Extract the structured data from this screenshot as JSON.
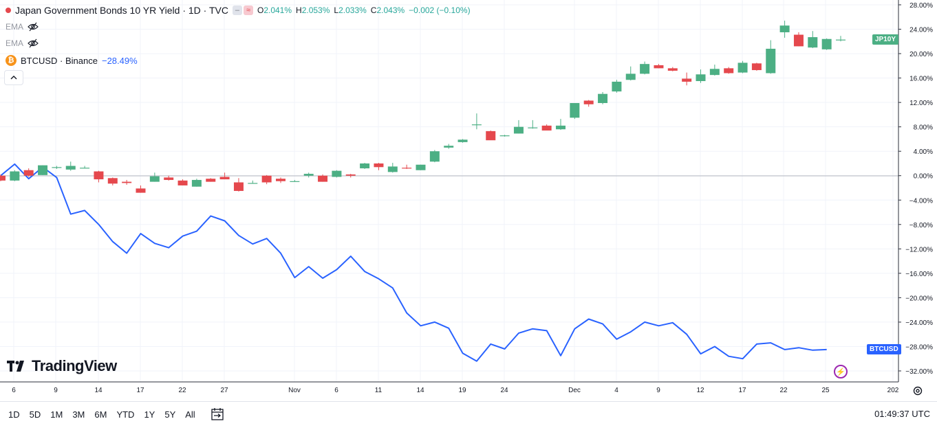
{
  "legend": {
    "symbol_title": "Japan Government Bonds 10 YR Yield · 1D · TVC",
    "o_label": "O",
    "o": "2.041%",
    "h_label": "H",
    "h": "2.053%",
    "l_label": "L",
    "l": "2.033%",
    "c_label": "C",
    "c": "2.043%",
    "change": "−0.002 (−0.10%)",
    "ema1": "EMA",
    "ema2": "EMA",
    "compare_symbol": "BTCUSD · Binance",
    "compare_change": "−28.49%"
  },
  "logo_text": "TradingView",
  "timeframes": [
    "1D",
    "5D",
    "1M",
    "3M",
    "6M",
    "YTD",
    "1Y",
    "5Y",
    "All"
  ],
  "clock": "01:49:37 UTC",
  "colors": {
    "up": "#4caf84",
    "down": "#e5484d",
    "btc": "#2962ff",
    "axis_text": "#131722",
    "jp_tag": "#4caf84",
    "btc_tag": "#2962ff"
  },
  "chart_data": {
    "type": "candlestick+line",
    "y_axis": {
      "unit": "%",
      "range": [
        -32,
        28
      ],
      "ticks": [
        "28.00%",
        "24.00%",
        "20.00%",
        "16.00%",
        "12.00%",
        "8.00%",
        "4.00%",
        "0.00%",
        "−4.00%",
        "−8.00%",
        "−12.00%",
        "−16.00%",
        "−20.00%",
        "−24.00%",
        "−28.00%",
        "−32.00%"
      ]
    },
    "x_axis": {
      "labels": [
        "6",
        "9",
        "14",
        "17",
        "22",
        "27",
        "Nov",
        "6",
        "11",
        "14",
        "19",
        "24",
        "Dec",
        "4",
        "9",
        "12",
        "17",
        "22",
        "25",
        "202"
      ]
    },
    "grid": true,
    "series": [
      {
        "name": "JP10Y",
        "style": "candles",
        "ohlc_percent": [
          [
            0,
            0.2,
            -0.9,
            -0.8
          ],
          [
            -0.8,
            0.9,
            -0.9,
            0.7
          ],
          [
            0.9,
            1.2,
            -0.2,
            0.0
          ],
          [
            0.1,
            1.7,
            0.1,
            1.7
          ],
          [
            1.3,
            1.6,
            1.1,
            1.4
          ],
          [
            1.0,
            2.3,
            0.8,
            1.6
          ],
          [
            1.3,
            1.6,
            1.2,
            1.3
          ],
          [
            0.7,
            0.8,
            -1.1,
            -0.6
          ],
          [
            -0.4,
            -0.3,
            -1.6,
            -1.3
          ],
          [
            -1.0,
            -0.7,
            -1.5,
            -1.2
          ],
          [
            -2.1,
            -1.6,
            -2.8,
            -2.8
          ],
          [
            -1.0,
            0.5,
            -1.0,
            -0.1
          ],
          [
            -0.3,
            0.0,
            -0.8,
            -0.7
          ],
          [
            -0.8,
            -0.6,
            -1.6,
            -1.6
          ],
          [
            -1.8,
            -0.5,
            -1.8,
            -0.7
          ],
          [
            -0.5,
            -0.4,
            -1.0,
            -1.0
          ],
          [
            -0.2,
            0.5,
            -0.6,
            -0.6
          ],
          [
            -1.1,
            -0.4,
            -2.6,
            -2.5
          ],
          [
            -1.2,
            -0.8,
            -1.3,
            -1.2
          ],
          [
            0.0,
            0.1,
            -1.4,
            -1.1
          ],
          [
            -0.5,
            -0.3,
            -1.2,
            -0.9
          ],
          [
            -0.9,
            -0.7,
            -1.0,
            -0.9
          ],
          [
            0.0,
            0.5,
            -0.3,
            0.3
          ],
          [
            0.0,
            0.2,
            -1.0,
            -1.0
          ],
          [
            -0.2,
            0.9,
            -0.3,
            0.8
          ],
          [
            0.2,
            0.3,
            -0.3,
            0.0
          ],
          [
            1.2,
            2.1,
            1.1,
            2.0
          ],
          [
            2.0,
            2.1,
            0.9,
            1.4
          ],
          [
            0.6,
            2.1,
            0.5,
            1.5
          ],
          [
            1.3,
            1.8,
            1.1,
            1.2
          ],
          [
            0.9,
            1.8,
            0.9,
            1.8
          ],
          [
            2.3,
            4.2,
            2.2,
            4.0
          ],
          [
            4.6,
            5.2,
            4.4,
            4.9
          ],
          [
            5.5,
            6.0,
            5.4,
            5.9
          ],
          [
            8.3,
            10.2,
            7.6,
            8.4
          ],
          [
            7.3,
            7.4,
            5.9,
            5.8
          ],
          [
            6.6,
            6.7,
            6.4,
            6.6
          ],
          [
            6.9,
            9.1,
            6.9,
            8.0
          ],
          [
            7.9,
            9.1,
            7.7,
            7.9
          ],
          [
            8.2,
            8.4,
            7.4,
            7.4
          ],
          [
            7.6,
            9.3,
            7.5,
            8.2
          ],
          [
            9.5,
            11.8,
            9.3,
            11.9
          ],
          [
            12.3,
            12.4,
            11.3,
            11.7
          ],
          [
            11.9,
            13.7,
            11.7,
            13.4
          ],
          [
            13.8,
            15.7,
            13.6,
            15.4
          ],
          [
            15.7,
            17.9,
            15.6,
            16.7
          ],
          [
            16.7,
            18.7,
            16.6,
            18.3
          ],
          [
            18.1,
            18.3,
            17.6,
            17.6
          ],
          [
            17.6,
            17.8,
            17.1,
            17.2
          ],
          [
            15.9,
            16.9,
            14.8,
            15.4
          ],
          [
            15.5,
            17.4,
            15.2,
            16.6
          ],
          [
            16.5,
            18.2,
            16.4,
            17.5
          ],
          [
            17.6,
            17.8,
            16.7,
            16.8
          ],
          [
            16.9,
            18.8,
            16.8,
            18.5
          ],
          [
            18.4,
            18.5,
            17.2,
            17.3
          ],
          [
            16.8,
            22.2,
            16.7,
            20.8
          ],
          [
            23.5,
            25.4,
            22.6,
            24.6
          ],
          [
            23.1,
            23.5,
            21.2,
            21.2
          ],
          [
            21.0,
            23.7,
            20.9,
            22.7
          ],
          [
            20.7,
            22.5,
            20.6,
            22.4
          ],
          [
            22.3,
            22.9,
            22.0,
            22.3
          ]
        ]
      },
      {
        "name": "BTCUSD",
        "style": "line",
        "values_percent": [
          0,
          1.9,
          -0.5,
          1.4,
          -0.3,
          -6.3,
          -5.7,
          -8.0,
          -10.8,
          -12.7,
          -9.5,
          -11.1,
          -11.8,
          -9.9,
          -9.1,
          -6.6,
          -7.4,
          -9.8,
          -11.2,
          -10.3,
          -12.7,
          -16.7,
          -14.9,
          -16.8,
          -15.4,
          -13.2,
          -15.7,
          -16.9,
          -18.4,
          -22.5,
          -24.6,
          -24.0,
          -25.0,
          -29.1,
          -30.4,
          -27.6,
          -28.4,
          -25.8,
          -25.1,
          -25.4,
          -29.5,
          -25.1,
          -23.5,
          -24.3,
          -26.8,
          -25.6,
          -24.0,
          -24.6,
          -24.1,
          -26.0,
          -29.2,
          -28.0,
          -29.6,
          -30.0,
          -27.6,
          -27.4,
          -28.5,
          -28.2,
          -28.6,
          -28.5
        ]
      }
    ],
    "price_tags": {
      "jp": "JP10Y",
      "btc": "BTCUSD"
    }
  }
}
